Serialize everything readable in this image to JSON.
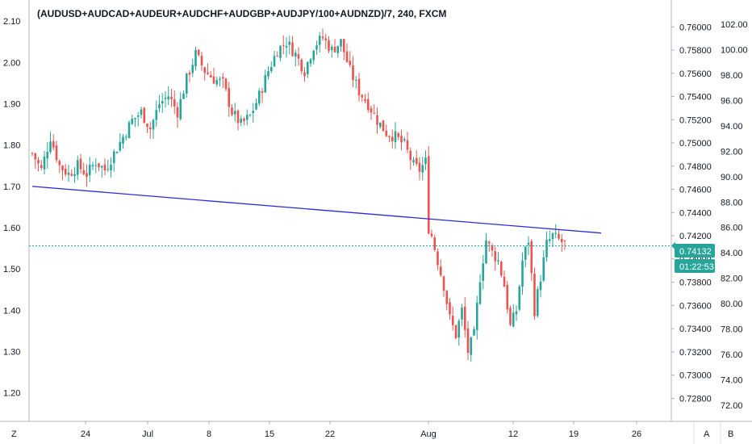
{
  "chart_data": {
    "type": "candlestick",
    "title": "(AUDUSD+AUDCAD+AUDEUR+AUDCHF+AUDGBP+AUDJPY/100+AUDNZD)/7, 240, FXCM",
    "left_axis": {
      "ylim": [
        1.17,
        2.12
      ],
      "ticks": [
        "2.10",
        "2.00",
        "1.90",
        "1.80",
        "1.70",
        "1.60",
        "1.50",
        "1.40",
        "1.30",
        "1.20"
      ]
    },
    "right_axis_1": {
      "ylim": [
        0.7274,
        0.7612
      ],
      "ticks": [
        "0.76000",
        "0.75800",
        "0.75600",
        "0.75400",
        "0.75200",
        "0.75000",
        "0.74800",
        "0.74600",
        "0.74400",
        "0.74200",
        "0.74000",
        "0.73800",
        "0.73600",
        "0.73400",
        "0.73200",
        "0.73000",
        "0.72800"
      ]
    },
    "right_axis_2": {
      "ticks": [
        "102.00",
        "100.00",
        "98.00",
        "96.00",
        "94.00",
        "92.00",
        "90.00",
        "88.00",
        "86.00",
        "84.00",
        "82.00",
        "80.00",
        "78.00",
        "76.00",
        "74.00",
        "72.00"
      ]
    },
    "x_ticks": [
      "24",
      "Jul",
      "8",
      "15",
      "22",
      "Aug",
      "12",
      "19",
      "26"
    ],
    "trendline": {
      "start": [
        0,
        1.7
      ],
      "end": [
        188,
        1.587
      ],
      "color": "#2b2bd6"
    },
    "price_line": {
      "value": 1.556,
      "color": "#26a69a"
    },
    "last_price": "0.74132",
    "countdown": "01:22:53",
    "colors": {
      "up": "#26a69a",
      "down": "#ef5350",
      "badge": "#26a69a",
      "text": "#131722",
      "grid": "#e0e3eb"
    },
    "anchors": [
      [
        0,
        1.78
      ],
      [
        3,
        1.74
      ],
      [
        6,
        1.82
      ],
      [
        9,
        1.75
      ],
      [
        12,
        1.73
      ],
      [
        15,
        1.75
      ],
      [
        18,
        1.73
      ],
      [
        21,
        1.76
      ],
      [
        24,
        1.74
      ],
      [
        27,
        1.78
      ],
      [
        30,
        1.82
      ],
      [
        33,
        1.86
      ],
      [
        36,
        1.88
      ],
      [
        39,
        1.84
      ],
      [
        42,
        1.9
      ],
      [
        45,
        1.92
      ],
      [
        48,
        1.88
      ],
      [
        51,
        1.96
      ],
      [
        54,
        2.02
      ],
      [
        57,
        1.98
      ],
      [
        60,
        1.96
      ],
      [
        63,
        1.95
      ],
      [
        66,
        1.88
      ],
      [
        69,
        1.85
      ],
      [
        72,
        1.87
      ],
      [
        75,
        1.92
      ],
      [
        78,
        1.98
      ],
      [
        81,
        2.03
      ],
      [
        84,
        2.05
      ],
      [
        87,
        2.02
      ],
      [
        90,
        1.98
      ],
      [
        93,
        2.04
      ],
      [
        96,
        2.06
      ],
      [
        99,
        2.03
      ],
      [
        102,
        2.05
      ],
      [
        105,
        1.98
      ],
      [
        108,
        1.93
      ],
      [
        111,
        1.9
      ],
      [
        114,
        1.86
      ],
      [
        117,
        1.83
      ],
      [
        120,
        1.82
      ],
      [
        123,
        1.8
      ],
      [
        126,
        1.75
      ],
      [
        128,
        1.74
      ],
      [
        130,
        1.76
      ],
      [
        131,
        1.6
      ],
      [
        132,
        1.58
      ],
      [
        134,
        1.52
      ],
      [
        136,
        1.46
      ],
      [
        138,
        1.38
      ],
      [
        140,
        1.34
      ],
      [
        142,
        1.4
      ],
      [
        144,
        1.3
      ],
      [
        146,
        1.34
      ],
      [
        148,
        1.48
      ],
      [
        150,
        1.57
      ],
      [
        152,
        1.54
      ],
      [
        154,
        1.52
      ],
      [
        156,
        1.46
      ],
      [
        158,
        1.36
      ],
      [
        160,
        1.4
      ],
      [
        162,
        1.52
      ],
      [
        164,
        1.57
      ],
      [
        166,
        1.4
      ],
      [
        168,
        1.48
      ],
      [
        170,
        1.56
      ],
      [
        172,
        1.58
      ],
      [
        174,
        1.57
      ],
      [
        176,
        1.56
      ]
    ],
    "seed": 7
  },
  "toolbar": {
    "z_label": "Z",
    "a_label": "A",
    "b_label": "B"
  }
}
